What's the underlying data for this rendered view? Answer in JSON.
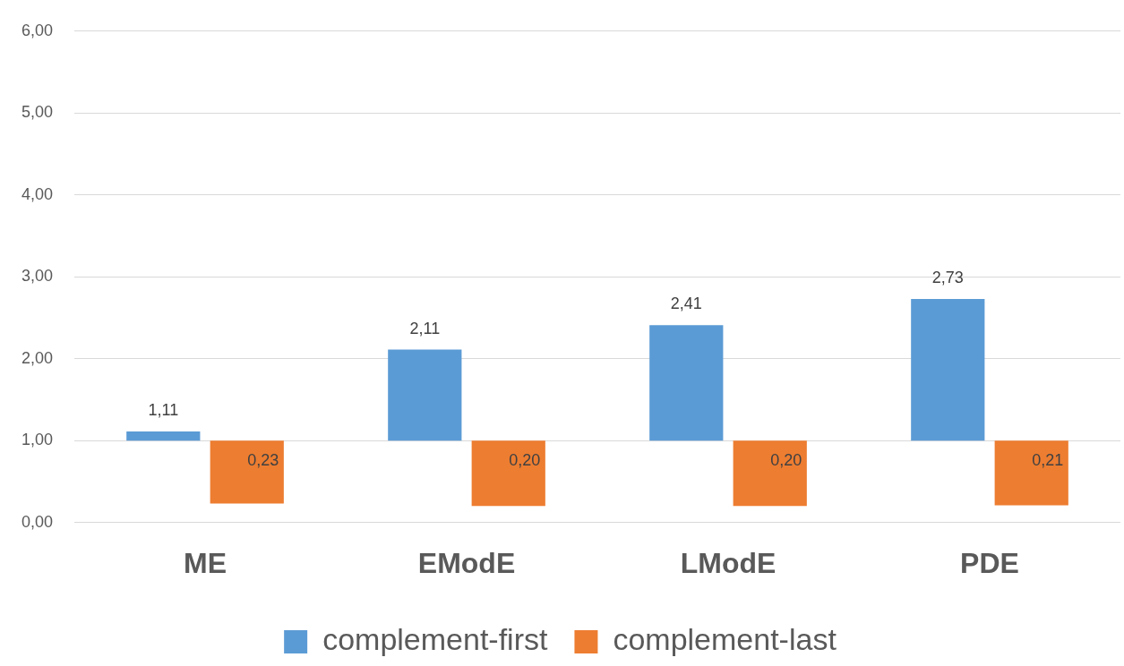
{
  "chart_data": {
    "type": "bar",
    "categories": [
      "ME",
      "EModE",
      "LModE",
      "PDE"
    ],
    "series": [
      {
        "name": "complement-first",
        "color": "#5b9bd5",
        "base": [
          1,
          1,
          1,
          1
        ],
        "values": [
          0.11,
          1.11,
          1.41,
          1.73
        ],
        "value_labels": [
          "1,11",
          "2,11",
          "2,41",
          "2,73"
        ]
      },
      {
        "name": "complement-last",
        "color": "#ed7d31",
        "base": [
          1,
          1,
          1,
          1
        ],
        "values": [
          -0.77,
          -0.8,
          -0.8,
          -0.79
        ],
        "value_labels": [
          "0,23",
          "0,20",
          "0,20",
          "0,21"
        ]
      }
    ],
    "ylim": [
      0,
      6
    ],
    "yticks": [
      {
        "value": 0,
        "label": "0,00"
      },
      {
        "value": 1,
        "label": "1,00"
      },
      {
        "value": 2,
        "label": "2,00"
      },
      {
        "value": 3,
        "label": "3,00"
      },
      {
        "value": 4,
        "label": "4,00"
      },
      {
        "value": 5,
        "label": "5,00"
      },
      {
        "value": 6,
        "label": "6,00"
      }
    ],
    "grid": "y",
    "legend": "bottom"
  }
}
